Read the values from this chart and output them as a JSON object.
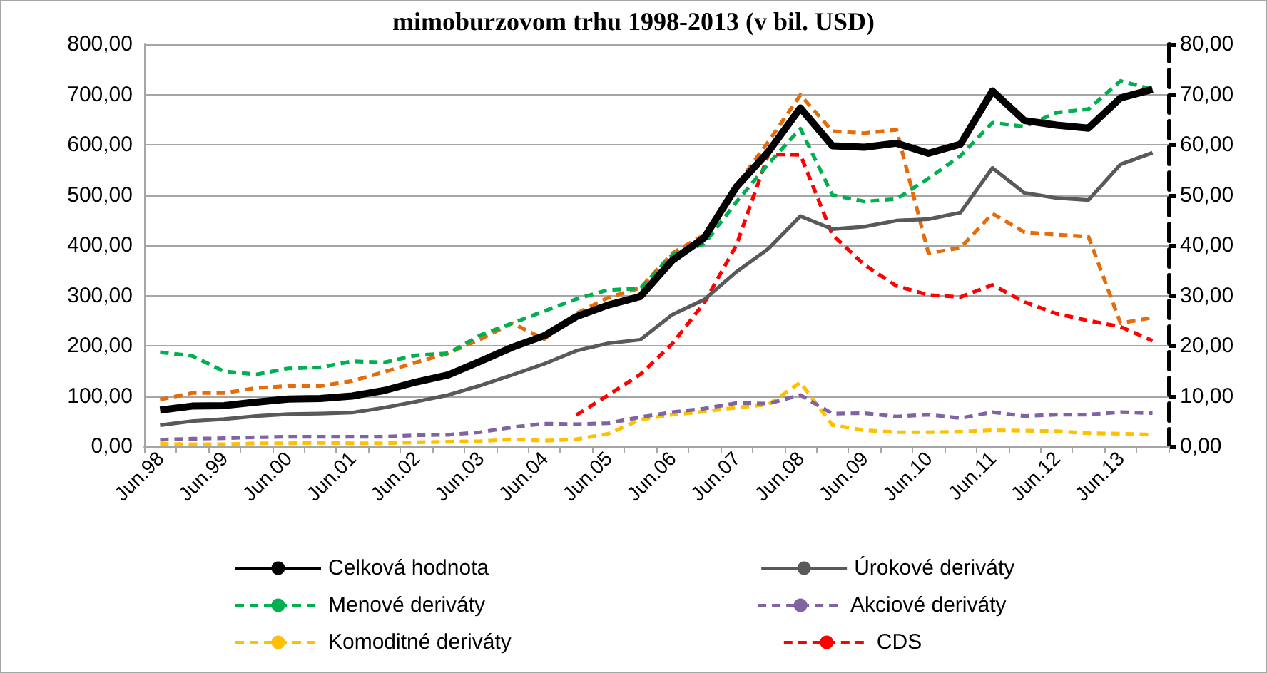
{
  "chart_data": {
    "type": "line",
    "title": "mimoburzovom trhu 1998-2013 (v bil. USD)",
    "categories": [
      "Jun.98",
      null,
      "Jun.99",
      null,
      "Jun.00",
      null,
      "Jun.01",
      null,
      "Jun.02",
      null,
      "Jun.03",
      null,
      "Jun.04",
      null,
      "Jun.05",
      null,
      "Jun.06",
      null,
      "Jun.07",
      null,
      "Jun.08",
      null,
      "Jun.09",
      null,
      "Jun.10",
      null,
      "Jun.11",
      null,
      "Jun.12",
      null,
      "Jun.13",
      null
    ],
    "series": [
      {
        "name": "Celková hodnota",
        "color": "#000000",
        "line_style": "solid",
        "values": [
          72,
          80,
          81,
          88,
          94,
          95,
          100,
          111,
          128,
          142,
          169,
          197,
          220,
          258,
          281,
          298,
          370,
          415,
          516,
          586,
          673,
          598,
          595,
          603,
          583,
          601,
          707,
          648,
          639,
          633,
          693,
          710
        ]
      },
      {
        "name": "Úrokové deriváty",
        "color": "#595959",
        "line_style": "solid",
        "values": [
          42,
          50,
          54,
          60,
          64,
          65,
          67,
          77,
          89,
          102,
          121,
          142,
          164,
          190,
          205,
          212,
          262,
          292,
          347,
          393,
          458,
          432,
          437,
          449,
          452,
          465,
          554,
          504,
          494,
          490,
          561,
          584
        ]
      },
      {
        "name": "Menové deriváty",
        "color": "#00b050",
        "line_style": "dashed",
        "axis": "y2",
        "values": [
          18.7,
          18.0,
          14.9,
          14.3,
          15.5,
          15.7,
          16.9,
          16.7,
          18.1,
          18.5,
          22.1,
          24.5,
          26.9,
          29.3,
          31.1,
          31.4,
          38.1,
          40.3,
          48.6,
          56.2,
          63.2,
          50.0,
          48.7,
          49.2,
          53.3,
          57.8,
          64.4,
          63.6,
          66.4,
          67.1,
          72.7,
          71.0
        ]
      },
      {
        "name": "Akciové deriváty",
        "color": "#8064a2",
        "line_style": "dashed",
        "axis": "y2",
        "values": [
          1.3,
          1.5,
          1.6,
          1.8,
          1.9,
          1.9,
          1.9,
          1.9,
          2.2,
          2.3,
          2.8,
          3.8,
          4.5,
          4.4,
          4.6,
          5.8,
          6.8,
          7.5,
          8.6,
          8.5,
          10.2,
          6.5,
          6.6,
          5.9,
          6.3,
          5.6,
          6.8,
          6.0,
          6.3,
          6.3,
          6.8,
          6.6
        ]
      },
      {
        "name": "Komoditné deriváty",
        "color": "#ffc000",
        "line_style": "dashed",
        "axis": "y2",
        "values": [
          0.5,
          0.4,
          0.4,
          0.6,
          0.6,
          0.7,
          0.6,
          0.6,
          0.8,
          0.9,
          1.0,
          1.4,
          1.1,
          1.4,
          2.5,
          5.3,
          6.3,
          6.9,
          7.7,
          8.3,
          12.7,
          4.2,
          3.2,
          2.8,
          2.8,
          2.9,
          3.2,
          3.1,
          3.0,
          2.6,
          2.5,
          2.3
        ]
      },
      {
        "name": "CDS",
        "color": "#ff0000",
        "line_style": "dashed",
        "axis": "y2",
        "values": [
          null,
          null,
          null,
          null,
          null,
          null,
          null,
          null,
          null,
          null,
          null,
          null,
          null,
          6.2,
          10.2,
          14.3,
          20.4,
          28.6,
          40.0,
          58.1,
          58.0,
          42.1,
          36.1,
          31.9,
          30.1,
          29.7,
          32.1,
          28.7,
          26.4,
          25.0,
          23.8,
          21.0
        ]
      },
      {
        "color": "#e46c0a",
        "line_style": "dashed",
        "axis": "y2",
        "values": [
          9.3,
          10.6,
          10.6,
          11.6,
          12.0,
          12.0,
          13.0,
          14.8,
          16.7,
          18.5,
          21.3,
          24.5,
          21.3,
          26.4,
          29.6,
          31.5,
          38.4,
          42.1,
          51.9,
          60.6,
          69.9,
          62.7,
          62.3,
          63.0,
          38.4,
          39.5,
          46.3,
          42.6,
          42.1,
          41.7,
          24.5,
          25.6
        ]
      }
    ],
    "ylim": [
      0,
      800
    ],
    "yticks": [
      {
        "value": 0,
        "label": "0,00"
      },
      {
        "value": 100,
        "label": "100,00"
      },
      {
        "value": 200,
        "label": "200,00"
      },
      {
        "value": 300,
        "label": "300,00"
      },
      {
        "value": 400,
        "label": "400,00"
      },
      {
        "value": 500,
        "label": "500,00"
      },
      {
        "value": 600,
        "label": "600,00"
      },
      {
        "value": 700,
        "label": "700,00"
      },
      {
        "value": 800,
        "label": "800,00"
      }
    ],
    "y2lim": [
      0,
      80
    ],
    "y2ticks": [
      {
        "value": 0,
        "label": "0,00"
      },
      {
        "value": 10,
        "label": "10,00"
      },
      {
        "value": 20,
        "label": "20,00"
      },
      {
        "value": 30,
        "label": "30,00"
      },
      {
        "value": 40,
        "label": "40,00"
      },
      {
        "value": 50,
        "label": "50,00"
      },
      {
        "value": 60,
        "label": "60,00"
      },
      {
        "value": 70,
        "label": "70,00"
      },
      {
        "value": 80,
        "label": "80,00"
      }
    ],
    "grid": "y",
    "legend": "bottom",
    "marker": "none"
  }
}
